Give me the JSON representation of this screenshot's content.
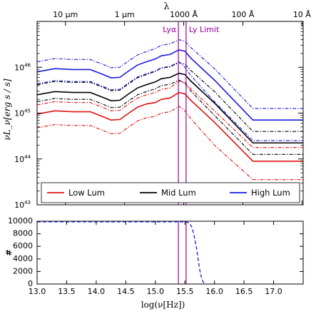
{
  "chart_data": [
    {
      "type": "line",
      "top_axis_label": "λ",
      "top_ticks": [
        {
          "label": "10 μm",
          "x": 13.48
        },
        {
          "label": "1 μm",
          "x": 14.48
        },
        {
          "label": "1000 Å",
          "x": 15.48
        },
        {
          "label": "100 Å",
          "x": 16.48
        },
        {
          "label": "10 Å",
          "x": 17.48
        }
      ],
      "ylabel": "νL_ν[erg s / s]",
      "y_log": true,
      "ylim_log10": [
        43,
        47
      ],
      "xlim": [
        13.0,
        17.5
      ],
      "y_ticks": [
        {
          "label": "10^43",
          "base": "10",
          "exp": "43",
          "value": 43
        },
        {
          "label": "10^44",
          "base": "10",
          "exp": "44",
          "value": 44
        },
        {
          "label": "10^45",
          "base": "10",
          "exp": "45",
          "value": 45
        },
        {
          "label": "10^46",
          "base": "10",
          "exp": "46",
          "value": 46
        }
      ],
      "vlines": [
        {
          "label": "Lyα",
          "x": 15.39,
          "color": "#9b009b"
        },
        {
          "label": "Ly Limit",
          "x": 15.52,
          "color": "#9b009b"
        }
      ],
      "x": [
        13.0,
        13.3,
        13.6,
        13.9,
        14.1,
        14.25,
        14.4,
        14.55,
        14.7,
        14.85,
        15.0,
        15.1,
        15.25,
        15.4,
        15.5,
        15.6,
        16.0,
        16.65,
        17.5
      ],
      "series": [
        {
          "name": "Low Lum",
          "color": "#e01010",
          "style": "solid",
          "width": 1.6,
          "y": [
            44.98,
            45.05,
            45.03,
            45.03,
            44.93,
            44.85,
            44.86,
            45.0,
            45.13,
            45.2,
            45.23,
            45.3,
            45.33,
            45.45,
            45.42,
            45.28,
            44.8,
            43.95,
            43.95
          ]
        },
        {
          "name": "Low Lum (upper)",
          "color": "#e01010",
          "style": "dashdot",
          "width": 1.1,
          "y": [
            45.18,
            45.25,
            45.23,
            45.23,
            45.13,
            45.05,
            45.06,
            45.2,
            45.33,
            45.4,
            45.45,
            45.52,
            45.55,
            45.7,
            45.67,
            45.53,
            45.05,
            44.25,
            44.25
          ]
        },
        {
          "name": "Low Lum (lower)",
          "color": "#e01010",
          "style": "dashdot",
          "width": 1.1,
          "y": [
            44.68,
            44.75,
            44.73,
            44.73,
            44.63,
            44.55,
            44.56,
            44.7,
            44.83,
            44.9,
            44.93,
            45.0,
            45.03,
            45.15,
            45.05,
            44.88,
            44.3,
            43.55,
            43.55
          ]
        },
        {
          "name": "Mid Lum",
          "color": "#000000",
          "style": "solid",
          "width": 1.6,
          "y": [
            45.4,
            45.47,
            45.45,
            45.45,
            45.35,
            45.27,
            45.28,
            45.42,
            45.55,
            45.62,
            45.68,
            45.75,
            45.78,
            45.87,
            45.84,
            45.7,
            45.22,
            44.35,
            44.35
          ]
        },
        {
          "name": "Mid Lum (upper)",
          "color": "#000000",
          "style": "dashdot",
          "width": 1.1,
          "y": [
            45.62,
            45.69,
            45.67,
            45.67,
            45.57,
            45.49,
            45.5,
            45.64,
            45.77,
            45.84,
            45.91,
            45.98,
            46.01,
            46.1,
            46.07,
            45.93,
            45.47,
            44.6,
            44.6
          ]
        },
        {
          "name": "Mid Lum (lower)",
          "color": "#000000",
          "style": "dashdot",
          "width": 1.1,
          "y": [
            45.25,
            45.32,
            45.3,
            45.3,
            45.2,
            45.12,
            45.13,
            45.27,
            45.4,
            45.47,
            45.53,
            45.6,
            45.63,
            45.72,
            45.65,
            45.48,
            44.95,
            44.1,
            44.1
          ]
        },
        {
          "name": "High Lum",
          "color": "#1a1ae0",
          "style": "solid",
          "width": 1.6,
          "y": [
            45.9,
            45.97,
            45.95,
            45.95,
            45.85,
            45.77,
            45.78,
            45.92,
            46.05,
            46.12,
            46.18,
            46.25,
            46.28,
            46.38,
            46.35,
            46.2,
            45.72,
            44.85,
            44.85
          ]
        },
        {
          "name": "High Lum (upper)",
          "color": "#1a1ae0",
          "style": "dashdot",
          "width": 1.1,
          "y": [
            46.12,
            46.19,
            46.17,
            46.17,
            46.07,
            45.99,
            46.0,
            46.14,
            46.27,
            46.34,
            46.41,
            46.48,
            46.51,
            46.6,
            46.57,
            46.43,
            45.97,
            45.1,
            45.1
          ]
        },
        {
          "name": "High Lum (lower)",
          "color": "#1a1ae0",
          "style": "dashdot",
          "width": 1.1,
          "y": [
            45.64,
            45.71,
            45.69,
            45.69,
            45.59,
            45.51,
            45.52,
            45.66,
            45.79,
            45.86,
            45.92,
            45.99,
            46.02,
            46.12,
            46.0,
            45.82,
            45.25,
            44.4,
            44.4
          ]
        }
      ],
      "legend": {
        "placement": "bottom",
        "entries": [
          {
            "name": "Low Lum",
            "color": "#e01010"
          },
          {
            "name": "Mid Lum",
            "color": "#000000"
          },
          {
            "name": "High Lum",
            "color": "#1a1ae0"
          }
        ]
      }
    },
    {
      "type": "line",
      "xlabel": "log(ν[Hz])",
      "ylabel": "#",
      "xlim": [
        13.0,
        17.5
      ],
      "ylim": [
        0,
        10000
      ],
      "x_ticks": [
        "13.0",
        "13.5",
        "14.0",
        "14.5",
        "15.0",
        "15.5",
        "16.0",
        "16.5",
        "17.0"
      ],
      "x_tick_values": [
        13.0,
        13.5,
        14.0,
        14.5,
        15.0,
        15.5,
        16.0,
        16.5,
        17.0
      ],
      "y_ticks": [
        "0",
        "2000",
        "4000",
        "6000",
        "8000",
        "10000"
      ],
      "y_tick_values": [
        0,
        2000,
        4000,
        6000,
        8000,
        10000
      ],
      "vlines": [
        {
          "x": 15.39,
          "color": "#9b009b"
        },
        {
          "x": 15.52,
          "color": "#9b009b"
        }
      ],
      "series": [
        {
          "color": "#1a1ae0",
          "style": "dashed",
          "x": [
            13.0,
            15.52,
            15.58,
            15.62,
            15.66,
            15.7,
            15.73,
            15.76,
            15.79,
            15.82,
            15.86
          ],
          "y": [
            9900,
            9900,
            9700,
            9000,
            7500,
            5500,
            3500,
            1800,
            700,
            150,
            0
          ]
        }
      ]
    }
  ]
}
